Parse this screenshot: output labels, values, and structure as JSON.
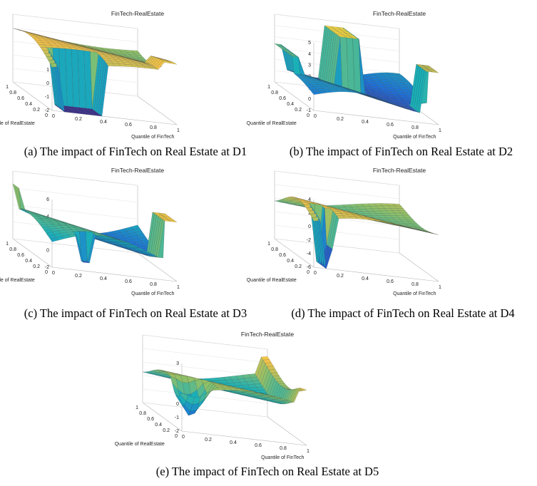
{
  "chart_data": [
    {
      "type": "surface",
      "title": "FinTech-RealEstate",
      "xlabel": "Quantile of FinTech",
      "ylabel": "Quantile of RealEstate",
      "zticks": [
        "-2",
        "-1",
        "0",
        "1",
        "2",
        "3"
      ],
      "xticks": [
        "0",
        "0.2",
        "0.4",
        "0.6",
        "0.8",
        "1"
      ],
      "yticks": [
        "0",
        "0.2",
        "0.4",
        "0.6",
        "0.8",
        "1"
      ],
      "caption": "(a) The impact of FinTech on Real Estate at D1"
    },
    {
      "type": "surface",
      "title": "FinTech-RealEstate",
      "xlabel": "Quantile of FinTech",
      "ylabel": "Quantile of RealEstate",
      "zticks": [
        "-1",
        "0",
        "1",
        "2",
        "3",
        "4",
        "5"
      ],
      "xticks": [
        "0",
        "0.2",
        "0.4",
        "0.6",
        "0.8",
        "1"
      ],
      "yticks": [
        "0",
        "0.2",
        "0.4",
        "0.6",
        "0.8",
        "1"
      ],
      "caption": "(b) The impact of FinTech on Real Estate at D2"
    },
    {
      "type": "surface",
      "title": "FinTech-RealEstate",
      "xlabel": "Quantile of FinTech",
      "ylabel": "Quantile of RealEstate",
      "zticks": [
        "-2",
        "0",
        "2",
        "4",
        "6"
      ],
      "xticks": [
        "0",
        "0.2",
        "0.4",
        "0.6",
        "0.8",
        "1"
      ],
      "yticks": [
        "0",
        "0.2",
        "0.4",
        "0.6",
        "0.8",
        "1"
      ],
      "caption": "(c) The impact of FinTech on Real Estate at D3"
    },
    {
      "type": "surface",
      "title": "FinTech-RealEstate",
      "xlabel": "Quantile of FinTech",
      "ylabel": "Quantile of RealEstate",
      "zticks": [
        "-6",
        "-4",
        "-2",
        "0",
        "2",
        "4"
      ],
      "xticks": [
        "0",
        "0.2",
        "0.4",
        "0.6",
        "0.8",
        "1"
      ],
      "yticks": [
        "0",
        "0.2",
        "0.4",
        "0.6",
        "0.8",
        "1"
      ],
      "caption": "(d) The impact of FinTech on Real Estate at D4"
    },
    {
      "type": "surface",
      "title": "FinTech-RealEstate",
      "xlabel": "Quantile of FinTech",
      "ylabel": "Quantile of RealEstate",
      "zticks": [
        "-2",
        "-1",
        "0",
        "1",
        "2",
        "3"
      ],
      "xticks": [
        "0",
        "0.2",
        "0.4",
        "0.6",
        "0.8",
        "1"
      ],
      "yticks": [
        "0",
        "0.2",
        "0.4",
        "0.6",
        "0.8",
        "1"
      ],
      "caption": "(e) The impact of FinTech on Real Estate at D5"
    }
  ],
  "colors": {
    "surface_low": "#3b2f8f",
    "surface_mid_low": "#1f6fd6",
    "surface_mid": "#1ab0b8",
    "surface_mid_high": "#8cc06a",
    "surface_high": "#f2c04a",
    "surface_top": "#f9f93a",
    "axis": "#999999"
  }
}
